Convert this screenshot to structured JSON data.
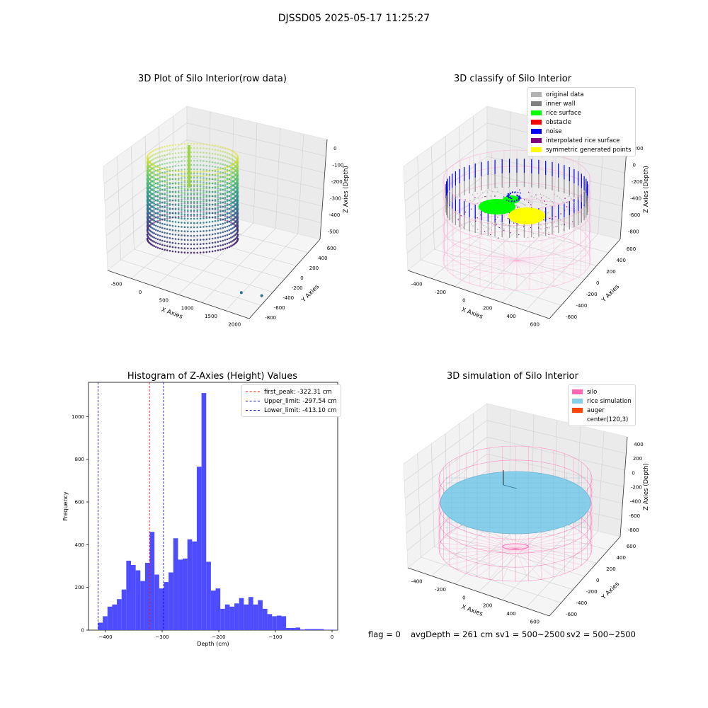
{
  "figure": {
    "suptitle": "DJSSD05 2025-05-17 11:25:27",
    "footer": {
      "flag": "flag = 0",
      "avg_depth": "avgDepth = 261 cm",
      "sv1": "sv1 = 500~2500",
      "sv2": "sv2 = 500~2500"
    }
  },
  "colors": {
    "hist_bar": "#4d4dff",
    "first_peak": "#ff0000",
    "limit": "#0000cc",
    "silo": "#ff69b4",
    "rice_simulation": "#87ceeb",
    "auger": "#ff4500",
    "original_data": "#b3b3b3",
    "inner_wall": "#808080",
    "rice_surface": "#00ff00",
    "obstacle": "#ff0000",
    "noise": "#0000ff",
    "interpolated": "#800080",
    "symmetric": "#ffff00"
  },
  "chart_data": [
    {
      "type": "scatter",
      "title": "3D Plot of Silo Interior(row data)",
      "xlabel": "X Axies",
      "ylabel": "Y Axies",
      "zlabel": "Z Axies (Depth)",
      "x_ticks": [
        "-500",
        "0",
        "500",
        "1000",
        "1500",
        "2000"
      ],
      "y_ticks": [
        "600",
        "400",
        "200",
        "0",
        "-200",
        "-400",
        "-600",
        "-800"
      ],
      "z_ticks": [
        "0",
        "-100",
        "-200",
        "-300",
        "-400",
        "-500"
      ],
      "outliers": [
        {
          "x": 1500,
          "y": -200,
          "z": -520
        },
        {
          "x": 1800,
          "y": -100,
          "z": -520
        }
      ]
    },
    {
      "type": "scatter",
      "title": "3D classify of Silo Interior",
      "xlabel": "X Axies",
      "ylabel": "Y Axies",
      "zlabel": "Z Axies (Depth)",
      "x_ticks": [
        "-400",
        "-200",
        "0",
        "200",
        "400",
        "600"
      ],
      "y_ticks": [
        "600",
        "400",
        "200",
        "0",
        "-200",
        "-400",
        "-600"
      ],
      "z_ticks": [
        "200",
        "0",
        "-200",
        "-400",
        "-600",
        "-800"
      ],
      "legend": [
        "original data",
        "inner wall",
        "rice surface",
        "obstacle",
        "noise",
        "interpolated rice surface",
        "symmetric generated points"
      ]
    },
    {
      "type": "bar",
      "title": "Histogram of Z-Axies (Height) Values",
      "xlabel": "Depth (cm)",
      "ylabel": "Frequency",
      "xlim": [
        -430,
        10
      ],
      "ylim": [
        0,
        1160
      ],
      "x_ticks": [
        -400,
        -300,
        -200,
        -100,
        0
      ],
      "y_ticks": [
        0,
        200,
        400,
        600,
        800,
        1000
      ],
      "bin_start": -413.1,
      "bin_width": 8.3,
      "values": [
        35,
        65,
        110,
        120,
        145,
        190,
        325,
        305,
        280,
        230,
        315,
        460,
        260,
        195,
        225,
        270,
        430,
        330,
        335,
        425,
        415,
        765,
        1110,
        320,
        185,
        195,
        100,
        120,
        110,
        125,
        150,
        120,
        155,
        120,
        140,
        100,
        75,
        65,
        68,
        65,
        10,
        10,
        12,
        3,
        5,
        5,
        5,
        5,
        2,
        2,
        1
      ],
      "first_peak": -322.31,
      "upper_limit": -297.54,
      "lower_limit": -413.1,
      "legend": [
        "first_peak: -322.31 cm",
        "Upper_limit: -297.54 cm",
        "Lower_limit: -413.10 cm"
      ]
    },
    {
      "type": "scatter",
      "title": "3D simulation of Silo Interior",
      "xlabel": "X Axies",
      "ylabel": "Y Axies",
      "zlabel": "Z Axies (Depth)",
      "x_ticks": [
        "-400",
        "-200",
        "0",
        "200",
        "400",
        "600"
      ],
      "y_ticks": [
        "600",
        "400",
        "200",
        "0",
        "-200",
        "-400",
        "-600"
      ],
      "z_ticks": [
        "400",
        "200",
        "0",
        "-200",
        "-400",
        "-600",
        "-800"
      ],
      "legend": [
        "silo",
        "rice simulation",
        "auger",
        "center(120,3)"
      ]
    }
  ]
}
